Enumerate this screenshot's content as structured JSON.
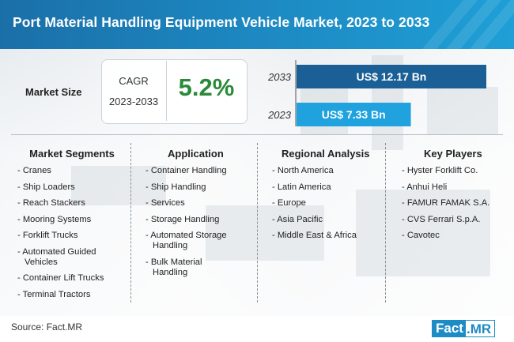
{
  "header": {
    "title": "Port Material Handling Equipment Vehicle Market, 2023 to 2033"
  },
  "market_size": {
    "label": "Market Size",
    "cagr_label": "CAGR",
    "cagr_years": "2023-2033",
    "cagr_value": "5.2%"
  },
  "chart_data": {
    "type": "bar",
    "orientation": "horizontal",
    "categories": [
      "2033",
      "2023"
    ],
    "values": [
      12.17,
      7.33
    ],
    "value_labels": [
      "US$ 12.17 Bn",
      "US$ 7.33 Bn"
    ],
    "unit": "US$ Bn",
    "colors": [
      "#1a5f96",
      "#1fa2dd"
    ],
    "title": "",
    "xlabel": "",
    "ylabel": "",
    "xlim": [
      0,
      12.17
    ],
    "grid": false
  },
  "columns": [
    {
      "title": "Market Segments",
      "items": [
        "- Cranes",
        "- Ship Loaders",
        "- Reach Stackers",
        "- Mooring Systems",
        "- Forklift Trucks",
        "- Automated Guided Vehicles",
        "- Container Lift Trucks",
        "- Terminal Tractors"
      ]
    },
    {
      "title": "Application",
      "items": [
        "- Container Handling",
        "- Ship Handling",
        "- Services",
        "- Storage Handling",
        "- Automated Storage Handling",
        "- Bulk Material Handling"
      ]
    },
    {
      "title": "Regional Analysis",
      "items": [
        "- North America",
        "- Latin America",
        "- Europe",
        "- Asia Pacific",
        "- Middle East & Africa"
      ]
    },
    {
      "title": "Key Players",
      "items": [
        "- Hyster Forklift Co.",
        "- Anhui Heli",
        "- FAMUR FAMAK S.A.",
        "- CVS Ferrari S.p.A.",
        "- Cavotec"
      ]
    }
  ],
  "footer": {
    "source": "Source: Fact.MR",
    "logo_part1": "Fact",
    "logo_part2": ".MR"
  },
  "colors": {
    "header_bg": "#1d8bc4",
    "cagr_green": "#2a8a3a",
    "bar_2033": "#1a5f96",
    "bar_2023": "#1fa2dd"
  }
}
